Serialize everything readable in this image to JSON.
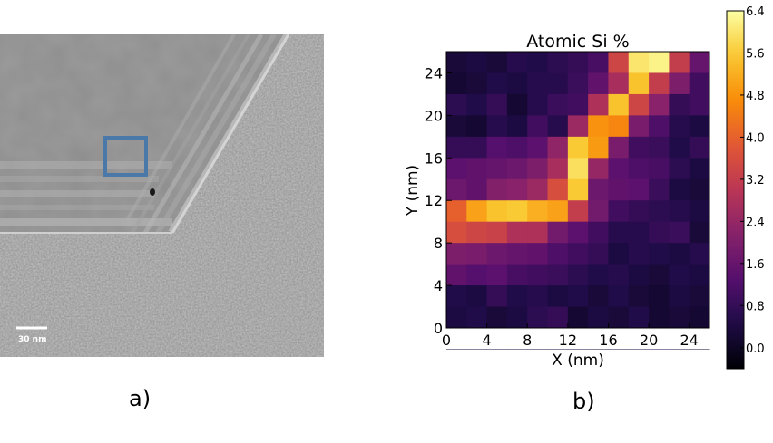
{
  "panels": {
    "a_label": "a)",
    "b_label": "b)"
  },
  "micrograph": {
    "scale_bar_label": "30 nm",
    "roi_box_color": "#4a78a8"
  },
  "chart_data": {
    "type": "heatmap",
    "title": "Atomic Si %",
    "xlabel": "X (nm)",
    "ylabel": "Y (nm)",
    "xlim": [
      0,
      26
    ],
    "ylim": [
      0,
      26
    ],
    "cell_size_nm": 2,
    "x_ticks": [
      0,
      4,
      8,
      12,
      16,
      20,
      24
    ],
    "y_ticks": [
      0,
      4,
      8,
      12,
      16,
      20,
      24
    ],
    "colormap": "inferno",
    "colorbar": {
      "min": -0.4,
      "max": 6.4,
      "ticks": [
        0.0,
        0.8,
        1.6,
        2.4,
        3.2,
        4.0,
        4.8,
        5.6,
        6.4
      ],
      "tick_labels": [
        "0.0",
        "0.8",
        "1.6",
        "2.4",
        "3.2",
        "4.0",
        "4.8",
        "5.6",
        "6.4"
      ]
    },
    "row_order": "top_to_bottom",
    "values": [
      [
        0.3,
        0.4,
        0.3,
        0.6,
        0.5,
        0.7,
        0.8,
        1.1,
        3.4,
        6.0,
        6.2,
        3.2,
        1.6,
        1.3,
        0.4
      ],
      [
        0.2,
        0.3,
        0.5,
        0.4,
        0.6,
        0.6,
        0.9,
        1.5,
        2.7,
        5.5,
        3.2,
        2.0,
        1.0,
        1.1,
        0.8
      ],
      [
        0.7,
        0.5,
        0.8,
        0.2,
        0.6,
        0.9,
        1.0,
        2.8,
        5.5,
        3.4,
        2.2,
        0.8,
        1.0,
        0.4,
        0.3
      ],
      [
        0.3,
        0.2,
        0.6,
        0.4,
        1.0,
        0.6,
        2.5,
        4.8,
        4.6,
        1.9,
        1.2,
        0.6,
        0.4,
        0.7,
        0.5
      ],
      [
        0.8,
        0.8,
        1.3,
        1.2,
        1.4,
        2.3,
        5.6,
        4.9,
        1.9,
        1.0,
        0.9,
        0.5,
        0.8,
        0.3,
        0.4
      ],
      [
        1.4,
        1.5,
        1.6,
        1.7,
        2.0,
        2.7,
        5.9,
        2.4,
        1.4,
        1.2,
        1.1,
        0.7,
        0.4,
        0.6,
        0.2
      ],
      [
        1.7,
        1.5,
        2.1,
        2.2,
        2.5,
        3.6,
        5.6,
        1.7,
        1.5,
        1.4,
        0.9,
        0.4,
        0.3,
        0.2,
        0.4
      ],
      [
        4.0,
        5.0,
        5.5,
        5.6,
        5.2,
        5.0,
        3.2,
        1.8,
        1.0,
        0.8,
        0.7,
        0.6,
        0.4,
        0.6,
        0.3
      ],
      [
        3.6,
        3.4,
        3.3,
        2.8,
        2.8,
        1.8,
        1.4,
        1.0,
        0.6,
        0.6,
        0.8,
        0.9,
        0.3,
        0.5,
        0.4
      ],
      [
        2.0,
        1.9,
        1.7,
        1.6,
        1.5,
        1.2,
        1.0,
        0.8,
        0.4,
        0.6,
        0.5,
        0.4,
        0.6,
        0.3,
        0.4
      ],
      [
        1.5,
        1.3,
        1.4,
        1.1,
        1.0,
        0.9,
        0.7,
        0.5,
        0.6,
        0.4,
        0.3,
        0.5,
        0.4,
        0.3,
        0.1
      ],
      [
        0.5,
        0.4,
        0.8,
        0.5,
        0.6,
        0.4,
        0.5,
        0.3,
        0.5,
        0.3,
        0.2,
        0.4,
        0.3,
        0.2,
        0.3
      ],
      [
        0.4,
        0.5,
        0.3,
        0.4,
        0.7,
        0.8,
        0.2,
        0.4,
        0.3,
        0.5,
        0.2,
        0.3,
        0.2,
        0.4,
        0.1
      ],
      [
        0.3,
        0.2,
        0.5,
        0.4,
        0.5,
        0.4,
        0.4,
        0.3,
        0.5,
        0.2,
        0.3,
        0.4,
        0.5,
        0.2,
        0.3
      ],
      [
        0.3,
        0.3,
        0.4,
        0.3,
        0.4,
        0.3,
        0.4,
        0.2,
        0.3,
        0.4,
        0.6,
        0.4,
        0.2,
        0.3,
        0.2
      ]
    ]
  }
}
